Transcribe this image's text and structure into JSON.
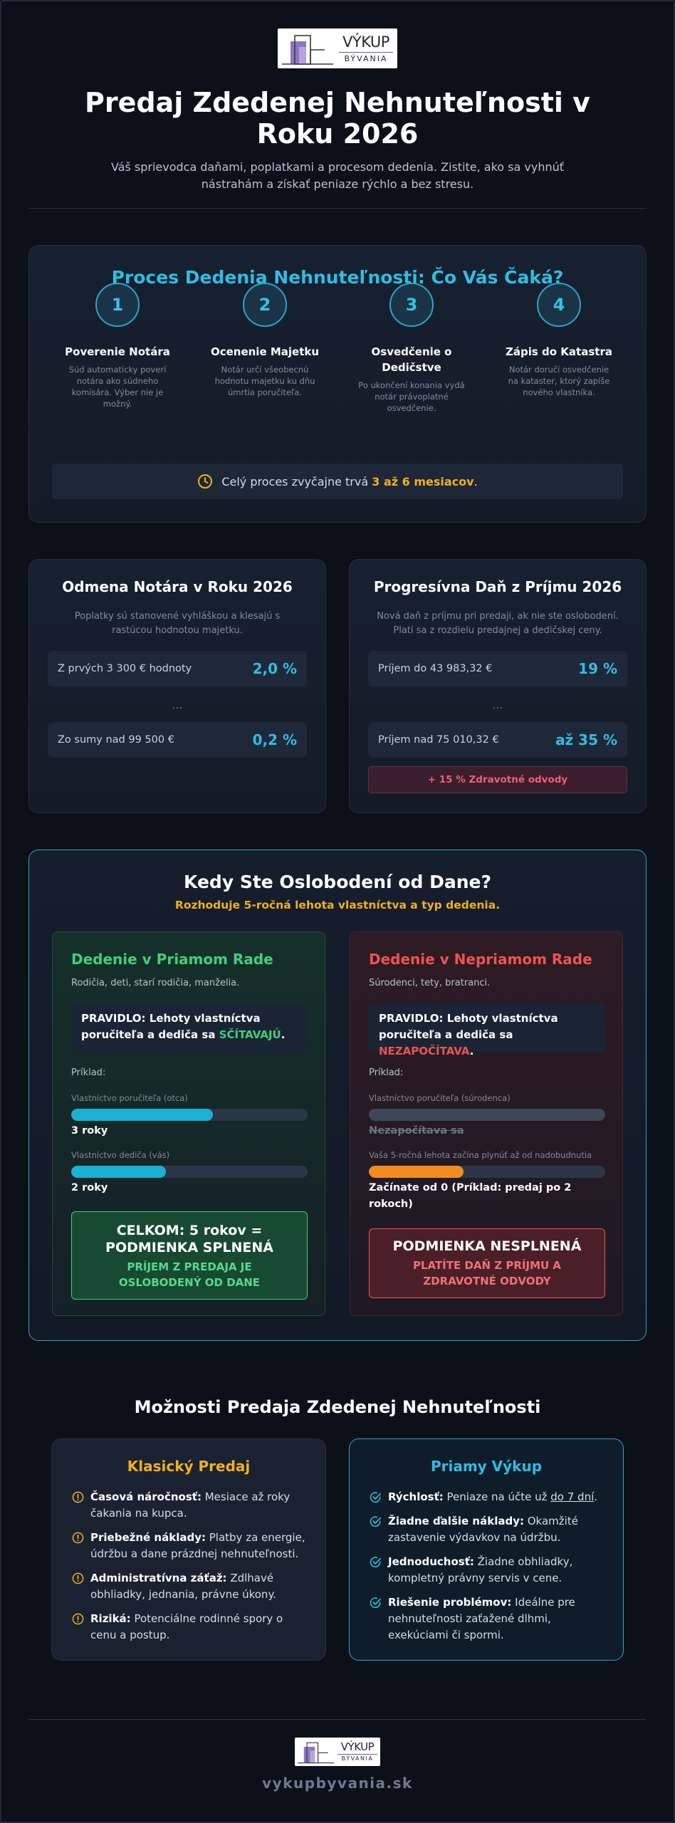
{
  "logo": {
    "word_top": "VÝKUP",
    "word_bottom": "BÝVANIA"
  },
  "header": {
    "title": "Predaj Zdedenej Nehnuteľnosti v Roku 2026",
    "subtitle": "Váš sprievodca daňami, poplatkami a procesom dedenia. Zistite, ako sa vyhnúť nástrahám a získať peniaze rýchlo a bez stresu."
  },
  "process": {
    "title": "Proces Dedenia Nehnuteľnosti: Čo Vás Čaká?",
    "steps": [
      {
        "num": "1",
        "title": "Poverenie Notára",
        "desc": "Súd automaticky poverí notára ako súdneho komisára. Výber nie je možný."
      },
      {
        "num": "2",
        "title": "Ocenenie Majetku",
        "desc": "Notár určí všeobecnú hodnotu majetku ku dňu úmrtia poručiteľa."
      },
      {
        "num": "3",
        "title": "Osvedčenie o Dedičstve",
        "desc": "Po ukončení konania vydá notár právoplatné osvedčenie."
      },
      {
        "num": "4",
        "title": "Zápis do Katastra",
        "desc": "Notár doručí osvedčenie na kataster, ktorý zapíše nového vlastníka."
      }
    ],
    "note_prefix": "Celý proces zvyčajne trvá ",
    "note_highlight": "3 až 6 mesiacov",
    "note_suffix": "."
  },
  "notary": {
    "title": "Odmena Notára v Roku 2026",
    "desc": "Poplatky sú stanovené vyhláškou a klesajú s rastúcou hodnotou majetku.",
    "row1_label": "Z prvých 3 300 € hodnoty",
    "row1_value": "2,0 %",
    "dots": "...",
    "row2_label": "Zo sumy nad 99 500 €",
    "row2_value": "0,2 %"
  },
  "tax": {
    "title": "Progresívna Daň z Príjmu 2026",
    "desc": "Nová daň z príjmu pri predaji, ak nie ste oslobodení. Platí sa z rozdielu predajnej a dedičskej ceny.",
    "row1_label": "Príjem do 43 983,32 €",
    "row1_value": "19 %",
    "dots": "...",
    "row2_label": "Príjem nad 75 010,32 €",
    "row2_value": "až 35 %",
    "health": "+ 15 % Zdravotné odvody"
  },
  "exemption": {
    "title": "Kedy Ste Oslobodení od Dane?",
    "subtitle": "Rozhoduje 5-ročná lehota vlastníctva a typ dedenia.",
    "direct": {
      "title": "Dedenie v Priamom Rade",
      "who": "Rodičia, deti, starí rodičia, manželia.",
      "rule_prefix": "PRAVIDLO: Lehoty vlastníctva poručiteľa a dediča sa ",
      "rule_highlight": "SČÍTAVAJÚ",
      "rule_suffix": ".",
      "example": "Príklad:",
      "bar1_label": "Vlastníctvo poručiteľa (otca)",
      "bar1_fill": 0.6,
      "bar1_value": "3 roky",
      "bar2_label": "Vlastníctvo dediča (vás)",
      "bar2_fill": 0.4,
      "bar2_value": "2 roky",
      "result_title": "CELKOM: 5 rokov = PODMIENKA SPLNENÁ",
      "result_sub": "PRÍJEM Z PREDAJA JE OSLOBODENÝ OD DANE"
    },
    "indirect": {
      "title": "Dedenie v Nepriamom Rade",
      "who": "Súrodenci, tety, bratranci.",
      "rule_prefix": "PRAVIDLO: Lehoty vlastníctva poručiteľa a dediča sa ",
      "rule_highlight": "NEZAPOČÍTAVA",
      "rule_suffix": ".",
      "example": "Príklad:",
      "bar1_label": "Vlastníctvo poručiteľa (súrodenca)",
      "bar1_fill": 1.0,
      "bar1_value": "Nezapočítava sa",
      "bar2_label": "Vaša 5-ročná lehota začína plynúť až od nadobudnutia",
      "bar2_fill": 0.4,
      "bar2_value": "Začínate od 0 (Príklad: predaj po 2 rokoch)",
      "result_title": "PODMIENKA NESPLNENÁ",
      "result_sub": "PLATÍTE DAŇ Z PRÍJMU A ZDRAVOTNÉ ODVODY"
    }
  },
  "options": {
    "title": "Možnosti Predaja Zdedenej Nehnuteľnosti",
    "classic": {
      "title": "Klasický Predaj",
      "items": [
        {
          "b": "Časová náročnosť:",
          "t": " Mesiace až roky čakania na kupca."
        },
        {
          "b": "Priebežné náklady:",
          "t": " Platby za energie, údržbu a dane prázdnej nehnuteľnosti."
        },
        {
          "b": "Administratívna záťaž:",
          "t": " Zdlhavé obhliadky, jednania, právne úkony."
        },
        {
          "b": "Riziká:",
          "t": " Potenciálne rodinné spory o cenu a postup."
        }
      ]
    },
    "direct": {
      "title": "Priamy Výkup",
      "items": [
        {
          "b": "Rýchlosť:",
          "t": " Peniaze na účte už ",
          "u": "do 7 dní",
          "e": "."
        },
        {
          "b": "Žiadne ďalšie náklady:",
          "t": " Okamžité zastavenie výdavkov na údržbu."
        },
        {
          "b": "Jednoduchosť:",
          "t": " Žiadne obhliadky, kompletný právny servis v cene."
        },
        {
          "b": "Riešenie problémov:",
          "t": " Ideálne pre nehnuteľnosti zaťažené dlhmi, exekúciami či spormi."
        }
      ]
    }
  },
  "footer": {
    "site": "vykupbyvania.sk"
  },
  "colors": {
    "accent_cyan": "#2fbde3",
    "accent_orange": "#f2b01e",
    "green": "#3fd17a",
    "red": "#ef5350"
  }
}
